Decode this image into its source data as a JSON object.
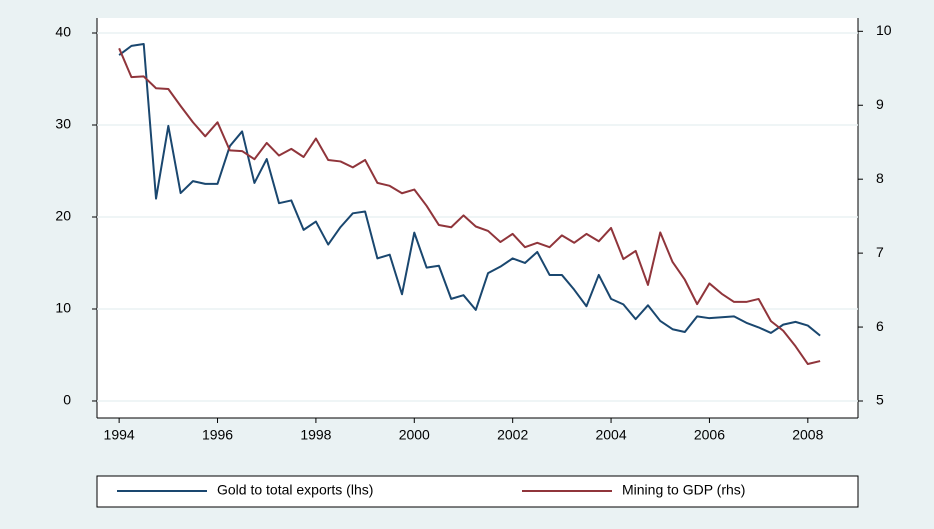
{
  "chart_data": {
    "type": "line",
    "x": [
      1994,
      1994.25,
      1994.5,
      1994.75,
      1995,
      1995.25,
      1995.5,
      1995.75,
      1996,
      1996.25,
      1996.5,
      1996.75,
      1997,
      1997.25,
      1997.5,
      1997.75,
      1998,
      1998.25,
      1998.5,
      1998.75,
      1999,
      1999.25,
      1999.5,
      1999.75,
      2000,
      2000.25,
      2000.5,
      2000.75,
      2001,
      2001.25,
      2001.5,
      2001.75,
      2002,
      2002.25,
      2002.5,
      2002.75,
      2003,
      2003.25,
      2003.5,
      2003.75,
      2004,
      2004.25,
      2004.5,
      2004.75,
      2005,
      2005.25,
      2005.5,
      2005.75,
      2006,
      2006.25,
      2006.5,
      2006.75,
      2007,
      2007.25,
      2007.5,
      2007.75,
      2008,
      2008.25
    ],
    "series": [
      {
        "name": "Gold to total exports (lhs)",
        "color": "#1a476f",
        "values": [
          37.6,
          38.6,
          38.8,
          22,
          29.9,
          22.6,
          23.9,
          23.6,
          23.6,
          27.7,
          29.3,
          23.7,
          26.3,
          21.5,
          21.8,
          18.6,
          19.5,
          17,
          18.9,
          20.4,
          20.6,
          15.5,
          15.9,
          11.6,
          18.3,
          14.5,
          14.7,
          11.1,
          11.5,
          9.9,
          13.9,
          14.6,
          15.5,
          15,
          16.2,
          13.7,
          13.7,
          12.1,
          10.3,
          13.7,
          11.1,
          10.5,
          8.9,
          10.4,
          8.7,
          7.8,
          7.5,
          9.2,
          9,
          9.1,
          9.2,
          8.5,
          8,
          7.4,
          8.3,
          8.6,
          8.2,
          7.1
        ]
      },
      {
        "name": "Mining to GDP (rhs)",
        "color": "#90353b",
        "axis": "y2",
        "values": [
          9.77,
          9.38,
          9.39,
          9.23,
          9.22,
          8.99,
          8.77,
          8.58,
          8.77,
          8.39,
          8.38,
          8.27,
          8.49,
          8.32,
          8.41,
          8.3,
          8.55,
          8.26,
          8.24,
          8.16,
          8.26,
          7.95,
          7.91,
          7.81,
          7.86,
          7.64,
          7.38,
          7.35,
          7.51,
          7.36,
          7.3,
          7.15,
          7.26,
          7.08,
          7.14,
          7.08,
          7.24,
          7.14,
          7.26,
          7.16,
          7.34,
          6.92,
          7.03,
          6.57,
          7.28,
          6.88,
          6.64,
          6.31,
          6.59,
          6.45,
          6.34,
          6.34,
          6.38,
          6.08,
          5.95,
          5.74,
          5.5,
          5.54
        ]
      }
    ],
    "xlim": [
      1993.55,
      2009.02
    ],
    "xticks": [
      1994,
      1996,
      1998,
      2000,
      2002,
      2004,
      2006,
      2008
    ],
    "ylim": [
      -1.85,
      41.63
    ],
    "yticks": [
      0,
      10,
      20,
      30,
      40
    ],
    "y2lim": [
      4.77,
      10.18
    ],
    "y2ticks": [
      5,
      6,
      7,
      8,
      9,
      10
    ],
    "grid": true,
    "legend": "bottom"
  }
}
